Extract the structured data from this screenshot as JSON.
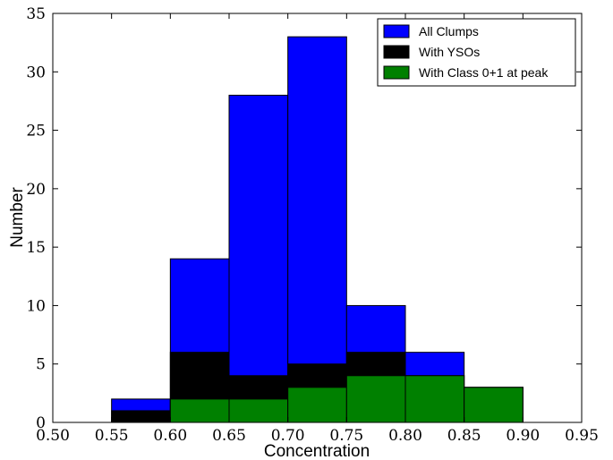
{
  "chart_data": {
    "type": "bar",
    "xlabel": "Concentration",
    "ylabel": "Number",
    "xlim": [
      0.5,
      0.95
    ],
    "ylim": [
      0,
      35
    ],
    "x_ticks": [
      "0.50",
      "0.55",
      "0.60",
      "0.65",
      "0.70",
      "0.75",
      "0.80",
      "0.85",
      "0.90",
      "0.95"
    ],
    "y_ticks": [
      "0",
      "5",
      "10",
      "15",
      "20",
      "25",
      "30",
      "35"
    ],
    "bin_edges": [
      0.55,
      0.6,
      0.65,
      0.7,
      0.75,
      0.8,
      0.85,
      0.9
    ],
    "series": [
      {
        "name": "All Clumps",
        "color": "#0000ff",
        "values": [
          2,
          14,
          28,
          33,
          10,
          6,
          3
        ]
      },
      {
        "name": "With YSOs",
        "color": "#000000",
        "values": [
          1,
          6,
          4,
          5,
          6,
          4,
          3
        ]
      },
      {
        "name": "With Class 0+1 at peak",
        "color": "#008000",
        "values": [
          0,
          2,
          2,
          3,
          4,
          4,
          3
        ]
      }
    ],
    "legend": "top-right",
    "grid": false
  }
}
